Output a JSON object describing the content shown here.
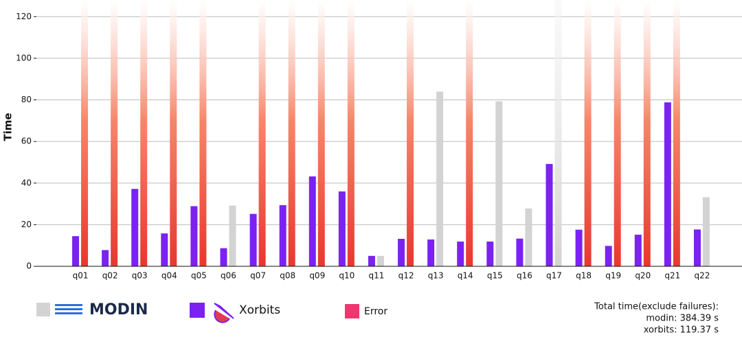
{
  "chart_data": {
    "type": "bar",
    "y_label": "Time",
    "categories": [
      "q01",
      "q02",
      "q03",
      "q04",
      "q05",
      "q06",
      "q07",
      "q08",
      "q09",
      "q10",
      "q11",
      "q12",
      "q13",
      "q14",
      "q15",
      "q16",
      "q17",
      "q18",
      "q19",
      "q20",
      "q21",
      "q22"
    ],
    "series": [
      {
        "name": "MODIN",
        "color": "#d3d3d3",
        "values": [
          null,
          null,
          null,
          null,
          null,
          29.2,
          null,
          null,
          null,
          null,
          5.0,
          null,
          84.0,
          null,
          79.3,
          27.8,
          null,
          null,
          null,
          null,
          null,
          33.2
        ],
        "failed": [
          true,
          true,
          true,
          true,
          true,
          false,
          true,
          true,
          true,
          true,
          false,
          true,
          false,
          true,
          false,
          false,
          false,
          true,
          true,
          true,
          true,
          false
        ],
        "over_limit": [
          false,
          false,
          false,
          false,
          false,
          false,
          false,
          false,
          false,
          false,
          false,
          false,
          false,
          false,
          false,
          false,
          true,
          false,
          false,
          false,
          false,
          false
        ]
      },
      {
        "name": "Xorbits",
        "color": "#7b22f0",
        "values": [
          14.5,
          7.8,
          37.2,
          15.8,
          28.9,
          8.7,
          25.2,
          29.4,
          43.2,
          36.0,
          5.0,
          13.2,
          12.9,
          11.9,
          11.9,
          13.3,
          49.2,
          17.6,
          9.8,
          15.2,
          78.8,
          17.7
        ]
      }
    ],
    "error_label": "Error",
    "error_color": "#e8372f",
    "error_legend_color": "#f03570",
    "ylim": [
      0,
      128
    ],
    "yticks": [
      0,
      20,
      40,
      60,
      80,
      100,
      120
    ],
    "grid": true,
    "annotations": [
      "Total time(exclude failures):",
      "modin: 384.39 s",
      "xorbits: 119.37 s"
    ]
  }
}
